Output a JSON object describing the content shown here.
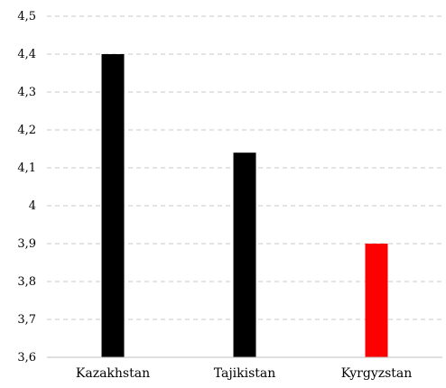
{
  "chart_data": {
    "type": "bar",
    "title": "",
    "xlabel": "",
    "ylabel": "",
    "categories": [
      "Kazakhstan",
      "Tajikistan",
      "Kyrgyzstan"
    ],
    "values": [
      4.4,
      4.14,
      3.9
    ],
    "colors": [
      "#000000",
      "#000000",
      "#ff0000"
    ],
    "ylim": [
      3.6,
      4.5
    ],
    "yticks": [
      3.6,
      3.7,
      3.8,
      3.9,
      4.0,
      4.1,
      4.2,
      4.3,
      4.4,
      4.5
    ],
    "ytick_labels": [
      "3,6",
      "3,7",
      "3,8",
      "3,9",
      "4",
      "4,1",
      "4,2",
      "4,3",
      "4,4",
      "4,5"
    ],
    "grid": true,
    "legend": "none"
  }
}
